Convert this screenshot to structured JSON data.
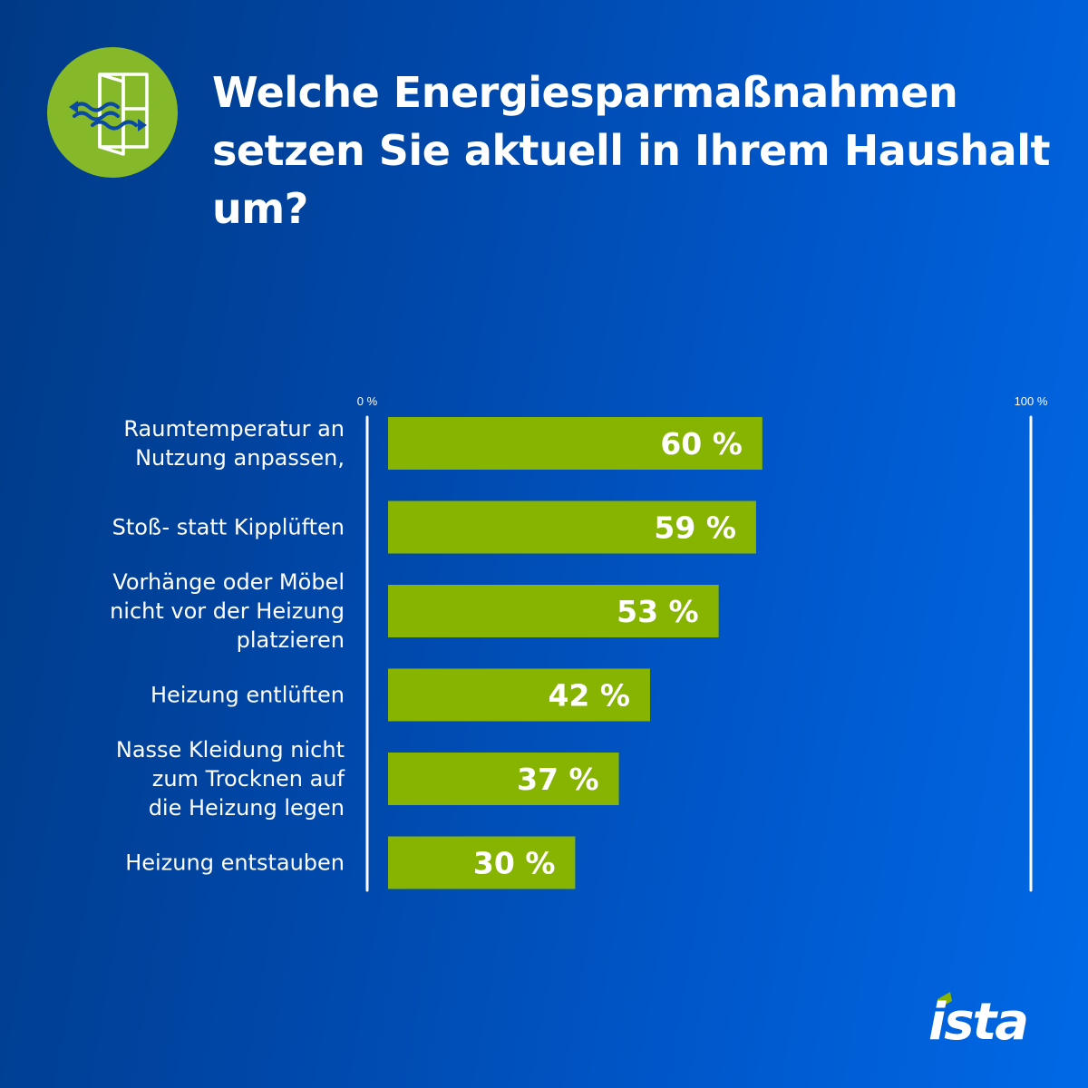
{
  "header": {
    "title": "Welche Energiesparmaßnahmen setzen Sie aktuell in Ihrem Haushalt um?",
    "icon": "window-ventilation-icon"
  },
  "colors": {
    "bar": "#86b400",
    "icon_circle": "#86b92a",
    "text": "#ffffff",
    "axis": "#ffffff"
  },
  "brand": {
    "logo": "ista"
  },
  "chart_data": {
    "type": "bar",
    "orientation": "horizontal",
    "categories": [
      "Raumtemperatur an Nutzung anpassen,",
      "Stoß- statt Kipplüften",
      "Vorhänge oder Möbel nicht vor der Heizung platzieren",
      "Heizung entlüften",
      "Nasse Kleidung nicht zum Trocknen auf die Heizung legen",
      "Heizung entstauben"
    ],
    "category_lines": [
      [
        "Raumtemperatur an",
        "Nutzung anpassen,"
      ],
      [
        "Stoß- statt Kipplüften"
      ],
      [
        "Vorhänge oder Möbel",
        "nicht vor der Heizung",
        "platzieren"
      ],
      [
        "Heizung entlüften"
      ],
      [
        "Nasse Kleidung nicht",
        "zum Trocknen auf",
        "die Heizung legen"
      ],
      [
        "Heizung entstauben"
      ]
    ],
    "values": [
      60,
      59,
      53,
      42,
      37,
      30
    ],
    "value_labels": [
      "60 %",
      "59 %",
      "53 %",
      "42 %",
      "37 %",
      "30 %"
    ],
    "xlim": [
      0,
      100
    ],
    "x_tick_labels": [
      "0 %",
      "100 %"
    ],
    "grid": false
  }
}
